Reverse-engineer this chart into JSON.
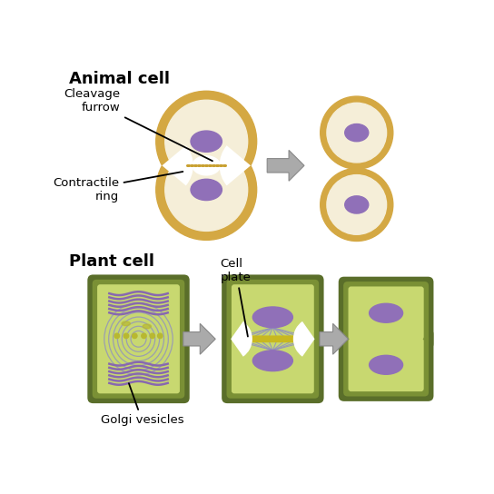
{
  "title_animal": "Animal cell",
  "title_plant": "Plant cell",
  "label_cleavage": "Cleavage\nfurrow",
  "label_contractile": "Contractile\nring",
  "label_cell_plate": "Cell\nplate",
  "label_golgi": "Golgi vesicles",
  "bg_color": "#ffffff",
  "animal_cell_outer": "#d4a843",
  "animal_cell_inner": "#f5eed8",
  "animal_nucleus": "#9070b8",
  "plant_cell_dark": "#5a6e2a",
  "plant_cell_mid": "#7a9035",
  "plant_cell_inner": "#c8d870",
  "plant_nucleus": "#9070b8",
  "arrow_color": "#aaaaaa",
  "arrow_edge": "#888888",
  "text_color": "#000000",
  "cleavage_color": "#c8a030",
  "spindle_color": "#9090c0",
  "golgi_color": "#8868b0",
  "golgi_dot_color": "#b8b830"
}
